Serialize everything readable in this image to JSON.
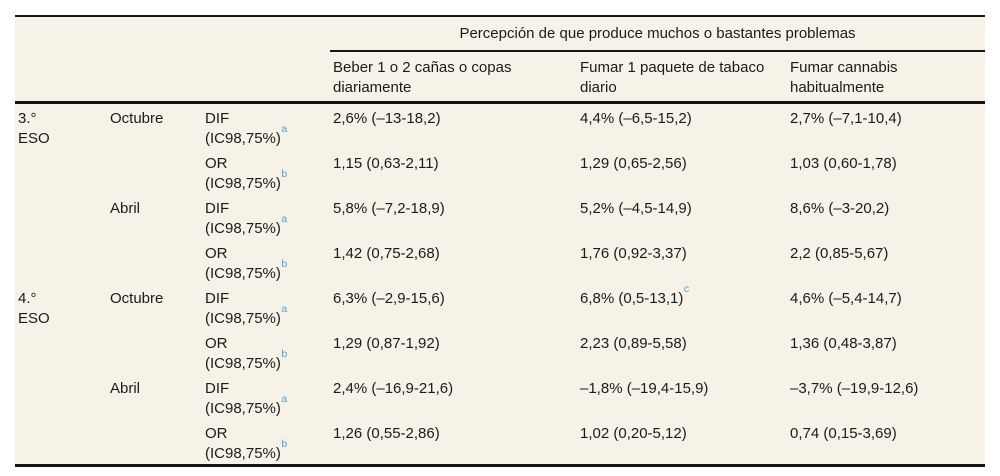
{
  "table": {
    "spanner": "Percepción de que produce muchos o bastantes problemas",
    "columns": {
      "beber": "Beber 1 o 2 cañas o copas diariamente",
      "tabaco": "Fumar 1 paquete de tabaco diario",
      "cannabis": "Fumar cannabis habitualmente"
    },
    "accent_blue": "#4aa2d9",
    "background": "#f6f2e8",
    "rows": [
      {
        "grade1": "3.°",
        "grade2": "ESO",
        "month": "Octubre",
        "m1": "DIF",
        "m2": "(IC98,75%)",
        "msup": "a",
        "v1": "2,6% (–13-18,2)",
        "v2": "4,4% (–6,5-15,2)",
        "v2sup": "",
        "v3": "2,7% (–7,1-10,4)"
      },
      {
        "grade1": "",
        "grade2": "",
        "month": "",
        "m1": "OR",
        "m2": "(IC98,75%)",
        "msup": "b",
        "v1": "1,15 (0,63-2,11)",
        "v2": "1,29 (0,65-2,56)",
        "v2sup": "",
        "v3": "1,03 (0,60-1,78)"
      },
      {
        "grade1": "",
        "grade2": "",
        "month": "Abril",
        "m1": "DIF",
        "m2": "(IC98,75%)",
        "msup": "a",
        "v1": "5,8% (–7,2-18,9)",
        "v2": "5,2% (–4,5-14,9)",
        "v2sup": "",
        "v3": "8,6% (–3-20,2)"
      },
      {
        "grade1": "",
        "grade2": "",
        "month": "",
        "m1": "OR",
        "m2": "(IC98,75%)",
        "msup": "b",
        "v1": "1,42 (0,75-2,68)",
        "v2": "1,76 (0,92-3,37)",
        "v2sup": "",
        "v3": "2,2 (0,85-5,67)"
      },
      {
        "grade1": "4.°",
        "grade2": "ESO",
        "month": "Octubre",
        "m1": "DIF",
        "m2": "(IC98,75%)",
        "msup": "a",
        "v1": "6,3% (–2,9-15,6)",
        "v2": "6,8% (0,5-13,1)",
        "v2sup": "c",
        "v3": "4,6% (–5,4-14,7)"
      },
      {
        "grade1": "",
        "grade2": "",
        "month": "",
        "m1": "OR",
        "m2": "(IC98,75%)",
        "msup": "b",
        "v1": "1,29 (0,87-1,92)",
        "v2": "2,23 (0,89-5,58)",
        "v2sup": "",
        "v3": "1,36 (0,48-3,87)"
      },
      {
        "grade1": "",
        "grade2": "",
        "month": "Abril",
        "m1": "DIF",
        "m2": "(IC98,75%)",
        "msup": "a",
        "v1": "2,4% (–16,9-21,6)",
        "v2": "–1,8% (–19,4-15,9)",
        "v2sup": "",
        "v3": "–3,7% (–19,9-12,6)"
      },
      {
        "grade1": "",
        "grade2": "",
        "month": "",
        "m1": "OR",
        "m2": "(IC98,75%)",
        "msup": "b",
        "v1": "1,26 (0,55-2,86)",
        "v2": "1,02 (0,20-5,12)",
        "v2sup": "",
        "v3": "0,74 (0,15-3,69)"
      }
    ]
  }
}
